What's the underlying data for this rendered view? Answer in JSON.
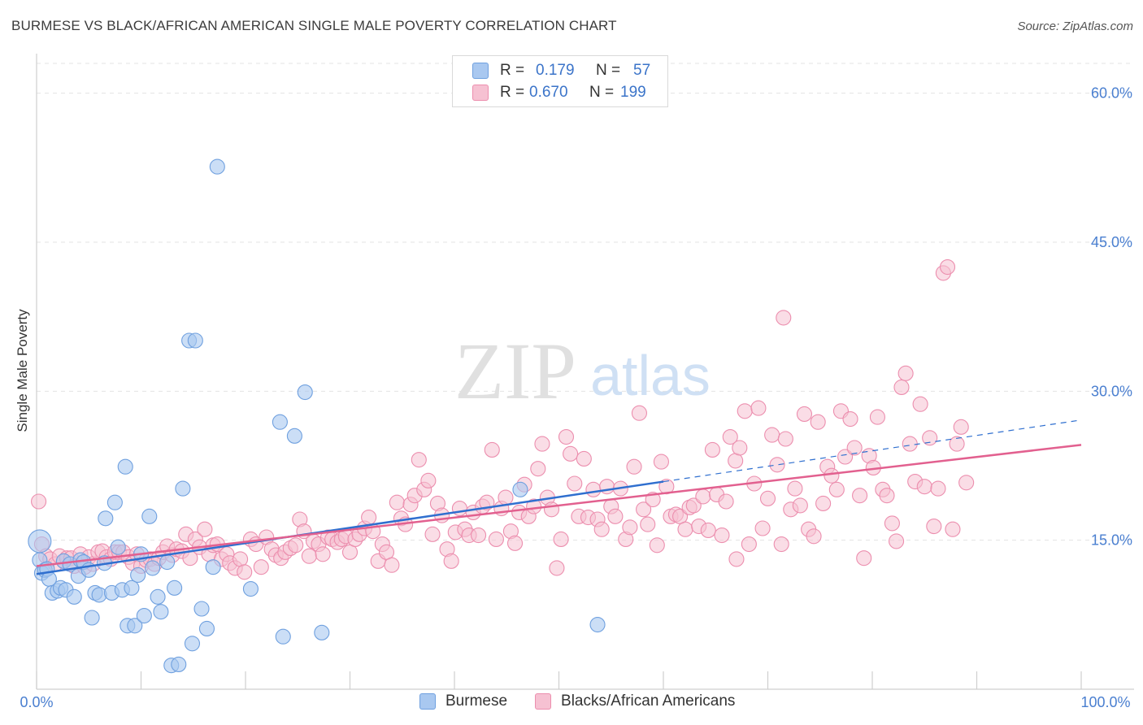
{
  "title": "BURMESE VS BLACK/AFRICAN AMERICAN SINGLE MALE POVERTY CORRELATION CHART",
  "source": "Source: ZipAtlas.com",
  "watermark": {
    "zip": "ZIP",
    "atlas": "atlas"
  },
  "legend": {
    "rows": [
      {
        "r_label": "R =",
        "r_value": "0.179",
        "n_label": "N =",
        "n_value": "57"
      },
      {
        "r_label": "R =",
        "r_value": "0.670",
        "n_label": "N =",
        "n_value": "199"
      }
    ]
  },
  "bottom_legend": {
    "series1": "Burmese",
    "series2": "Blacks/African Americans"
  },
  "colors": {
    "burmese_fill": "#a9c8f0",
    "burmese_stroke": "#6fa0df",
    "burmese_line": "#2f6fcf",
    "black_fill": "#f6c1d2",
    "black_stroke": "#ec8eae",
    "black_line": "#e2608f",
    "tick_text": "#4a7fd0",
    "grid": "#e3e3e3"
  },
  "chart_data": {
    "type": "scatter",
    "title": "BURMESE VS BLACK/AFRICAN AMERICAN SINGLE MALE POVERTY CORRELATION CHART",
    "xlabel": "",
    "ylabel": "Single Male Poverty",
    "xlim": [
      0,
      100
    ],
    "ylim": [
      0,
      63
    ],
    "x_ticks": [
      "0.0%",
      "100.0%"
    ],
    "y_ticks": [
      "15.0%",
      "30.0%",
      "45.0%",
      "60.0%"
    ],
    "y_tick_values": [
      15,
      30,
      45,
      60
    ],
    "grid": "horizontal dashed",
    "legend_position": "top-center",
    "series": [
      {
        "name": "Burmese",
        "r": 0.179,
        "n": 57,
        "trend": {
          "x_start": 0,
          "y_start": 11.6,
          "x_solid_end": 60,
          "y_solid_end": 20.9,
          "x_end": 100,
          "y_end": 27.1
        },
        "points": [
          [
            0.3,
            14.9
          ],
          [
            0.3,
            13.0
          ],
          [
            0.5,
            11.7
          ],
          [
            0.8,
            12.0
          ],
          [
            1.0,
            12.1
          ],
          [
            1.2,
            11.1
          ],
          [
            1.5,
            9.7
          ],
          [
            2.0,
            9.9
          ],
          [
            2.3,
            10.2
          ],
          [
            2.6,
            12.9
          ],
          [
            2.8,
            10.0
          ],
          [
            3.2,
            12.6
          ],
          [
            3.6,
            9.3
          ],
          [
            4.0,
            11.4
          ],
          [
            4.2,
            13.0
          ],
          [
            4.5,
            12.8
          ],
          [
            5.0,
            12.0
          ],
          [
            5.3,
            7.2
          ],
          [
            5.6,
            9.7
          ],
          [
            6.0,
            9.5
          ],
          [
            6.5,
            12.7
          ],
          [
            6.6,
            17.2
          ],
          [
            7.2,
            9.7
          ],
          [
            7.5,
            18.8
          ],
          [
            7.8,
            14.3
          ],
          [
            8.2,
            10.0
          ],
          [
            8.5,
            22.4
          ],
          [
            8.7,
            6.4
          ],
          [
            9.1,
            10.2
          ],
          [
            9.4,
            6.4
          ],
          [
            9.7,
            11.5
          ],
          [
            10.0,
            13.6
          ],
          [
            10.3,
            7.4
          ],
          [
            10.8,
            17.4
          ],
          [
            11.1,
            12.2
          ],
          [
            11.6,
            9.3
          ],
          [
            11.9,
            7.8
          ],
          [
            12.5,
            12.8
          ],
          [
            12.9,
            2.4
          ],
          [
            13.2,
            10.2
          ],
          [
            13.6,
            2.5
          ],
          [
            14.0,
            20.2
          ],
          [
            14.6,
            35.1
          ],
          [
            14.9,
            4.6
          ],
          [
            15.2,
            35.1
          ],
          [
            15.8,
            8.1
          ],
          [
            16.3,
            6.1
          ],
          [
            16.9,
            12.3
          ],
          [
            17.3,
            52.6
          ],
          [
            20.5,
            10.1
          ],
          [
            23.3,
            26.9
          ],
          [
            23.6,
            5.3
          ],
          [
            24.7,
            25.5
          ],
          [
            25.7,
            29.9
          ],
          [
            27.3,
            5.7
          ],
          [
            46.3,
            20.1
          ],
          [
            53.7,
            6.5
          ]
        ]
      },
      {
        "name": "Blacks/African Americans",
        "r": 0.67,
        "n": 199,
        "trend": {
          "x_start": 0,
          "y_start": 12.4,
          "x_end": 100,
          "y_end": 24.6
        },
        "points": [
          [
            0.2,
            18.9
          ],
          [
            0.5,
            14.6
          ],
          [
            0.9,
            13.4
          ],
          [
            1.3,
            13.1
          ],
          [
            1.8,
            12.6
          ],
          [
            2.2,
            13.4
          ],
          [
            2.6,
            12.9
          ],
          [
            2.9,
            13.2
          ],
          [
            3.3,
            13.2
          ],
          [
            3.6,
            12.4
          ],
          [
            4.2,
            13.6
          ],
          [
            4.6,
            12.3
          ],
          [
            5.0,
            13.3
          ],
          [
            5.4,
            12.6
          ],
          [
            5.9,
            13.8
          ],
          [
            6.3,
            13.9
          ],
          [
            6.7,
            13.3
          ],
          [
            7.1,
            13.1
          ],
          [
            7.5,
            13.8
          ],
          [
            7.9,
            13.8
          ],
          [
            8.3,
            13.8
          ],
          [
            8.8,
            13.3
          ],
          [
            9.2,
            12.7
          ],
          [
            9.6,
            13.6
          ],
          [
            10.0,
            12.4
          ],
          [
            10.5,
            13.0
          ],
          [
            10.9,
            13.1
          ],
          [
            11.3,
            12.6
          ],
          [
            11.7,
            13.2
          ],
          [
            12.1,
            13.8
          ],
          [
            12.5,
            14.4
          ],
          [
            13.0,
            13.5
          ],
          [
            13.4,
            14.1
          ],
          [
            13.9,
            13.9
          ],
          [
            14.3,
            15.6
          ],
          [
            14.7,
            13.2
          ],
          [
            15.2,
            15.1
          ],
          [
            15.6,
            14.3
          ],
          [
            16.1,
            16.1
          ],
          [
            16.5,
            13.6
          ],
          [
            16.9,
            14.5
          ],
          [
            17.3,
            14.6
          ],
          [
            17.7,
            13.1
          ],
          [
            18.2,
            13.6
          ],
          [
            18.5,
            12.7
          ],
          [
            19.0,
            12.2
          ],
          [
            19.5,
            13.1
          ],
          [
            19.9,
            11.8
          ],
          [
            20.5,
            15.1
          ],
          [
            21.0,
            14.6
          ],
          [
            21.5,
            12.3
          ],
          [
            22.0,
            15.3
          ],
          [
            22.5,
            14.1
          ],
          [
            22.9,
            13.5
          ],
          [
            23.4,
            13.2
          ],
          [
            23.8,
            13.8
          ],
          [
            24.3,
            14.2
          ],
          [
            24.8,
            14.5
          ],
          [
            25.2,
            17.1
          ],
          [
            25.6,
            15.9
          ],
          [
            26.1,
            13.4
          ],
          [
            26.5,
            14.9
          ],
          [
            27.0,
            14.6
          ],
          [
            27.4,
            13.6
          ],
          [
            27.9,
            15.3
          ],
          [
            28.3,
            15.1
          ],
          [
            28.8,
            14.8
          ],
          [
            29.2,
            15.1
          ],
          [
            29.6,
            15.4
          ],
          [
            30.0,
            13.8
          ],
          [
            30.5,
            15.1
          ],
          [
            30.9,
            15.6
          ],
          [
            31.4,
            16.2
          ],
          [
            31.8,
            17.3
          ],
          [
            32.2,
            15.9
          ],
          [
            32.7,
            12.9
          ],
          [
            33.1,
            14.6
          ],
          [
            33.5,
            13.8
          ],
          [
            34.0,
            12.5
          ],
          [
            34.5,
            18.8
          ],
          [
            34.9,
            17.2
          ],
          [
            35.3,
            16.6
          ],
          [
            35.8,
            18.6
          ],
          [
            36.2,
            19.5
          ],
          [
            36.6,
            23.1
          ],
          [
            37.1,
            20.1
          ],
          [
            37.5,
            21.0
          ],
          [
            37.9,
            15.6
          ],
          [
            38.4,
            18.7
          ],
          [
            38.8,
            17.5
          ],
          [
            39.3,
            14.1
          ],
          [
            39.7,
            12.9
          ],
          [
            40.1,
            15.8
          ],
          [
            40.5,
            18.2
          ],
          [
            41.0,
            16.1
          ],
          [
            41.4,
            15.5
          ],
          [
            41.8,
            17.8
          ],
          [
            42.3,
            15.5
          ],
          [
            42.7,
            18.4
          ],
          [
            43.1,
            18.8
          ],
          [
            43.6,
            24.1
          ],
          [
            44.0,
            15.1
          ],
          [
            44.5,
            18.2
          ],
          [
            44.9,
            19.3
          ],
          [
            45.4,
            15.9
          ],
          [
            45.8,
            14.7
          ],
          [
            46.2,
            17.8
          ],
          [
            46.7,
            20.6
          ],
          [
            47.1,
            17.4
          ],
          [
            47.6,
            18.4
          ],
          [
            48.0,
            22.2
          ],
          [
            48.4,
            24.7
          ],
          [
            48.9,
            19.3
          ],
          [
            49.3,
            18.1
          ],
          [
            49.8,
            12.2
          ],
          [
            50.2,
            15.1
          ],
          [
            50.7,
            25.4
          ],
          [
            51.1,
            23.7
          ],
          [
            51.5,
            20.7
          ],
          [
            51.9,
            17.4
          ],
          [
            52.4,
            23.2
          ],
          [
            52.8,
            17.3
          ],
          [
            53.3,
            20.1
          ],
          [
            53.7,
            17.1
          ],
          [
            54.1,
            16.1
          ],
          [
            54.6,
            20.4
          ],
          [
            55.0,
            18.4
          ],
          [
            55.4,
            17.4
          ],
          [
            55.9,
            20.2
          ],
          [
            56.4,
            15.1
          ],
          [
            56.8,
            16.3
          ],
          [
            57.2,
            22.4
          ],
          [
            57.7,
            27.8
          ],
          [
            58.1,
            18.1
          ],
          [
            58.5,
            16.6
          ],
          [
            59.0,
            19.1
          ],
          [
            59.4,
            14.5
          ],
          [
            59.8,
            22.9
          ],
          [
            60.3,
            20.4
          ],
          [
            60.7,
            17.4
          ],
          [
            61.2,
            17.6
          ],
          [
            61.6,
            17.4
          ],
          [
            62.1,
            16.1
          ],
          [
            62.5,
            18.3
          ],
          [
            62.9,
            18.5
          ],
          [
            63.4,
            16.4
          ],
          [
            63.8,
            19.4
          ],
          [
            64.3,
            16.0
          ],
          [
            64.7,
            24.1
          ],
          [
            65.1,
            19.6
          ],
          [
            65.6,
            15.5
          ],
          [
            66.0,
            18.9
          ],
          [
            66.4,
            25.4
          ],
          [
            66.9,
            23.0
          ],
          [
            67.3,
            24.3
          ],
          [
            67.8,
            28.0
          ],
          [
            68.2,
            14.6
          ],
          [
            68.7,
            20.7
          ],
          [
            69.1,
            28.3
          ],
          [
            69.5,
            16.2
          ],
          [
            70.0,
            19.2
          ],
          [
            70.4,
            25.6
          ],
          [
            70.9,
            22.6
          ],
          [
            71.3,
            14.6
          ],
          [
            71.7,
            25.2
          ],
          [
            72.2,
            18.1
          ],
          [
            72.6,
            20.2
          ],
          [
            73.1,
            18.5
          ],
          [
            73.5,
            27.7
          ],
          [
            73.9,
            16.1
          ],
          [
            74.4,
            15.4
          ],
          [
            74.8,
            26.9
          ],
          [
            75.3,
            18.7
          ],
          [
            75.7,
            22.4
          ],
          [
            76.1,
            21.5
          ],
          [
            76.6,
            20.1
          ],
          [
            77.0,
            28.0
          ],
          [
            77.4,
            23.4
          ],
          [
            77.9,
            27.2
          ],
          [
            78.3,
            24.3
          ],
          [
            78.8,
            19.5
          ],
          [
            79.2,
            13.2
          ],
          [
            79.7,
            23.5
          ],
          [
            80.1,
            22.3
          ],
          [
            80.5,
            27.4
          ],
          [
            81.0,
            20.1
          ],
          [
            81.4,
            19.5
          ],
          [
            81.9,
            16.7
          ],
          [
            82.3,
            14.9
          ],
          [
            82.8,
            30.4
          ],
          [
            83.2,
            31.8
          ],
          [
            83.6,
            24.7
          ],
          [
            84.1,
            20.9
          ],
          [
            84.6,
            28.7
          ],
          [
            85.0,
            20.4
          ],
          [
            85.5,
            25.3
          ],
          [
            85.9,
            16.4
          ],
          [
            86.3,
            20.2
          ],
          [
            86.8,
            41.9
          ],
          [
            87.2,
            42.5
          ],
          [
            87.7,
            16.1
          ],
          [
            88.1,
            24.7
          ],
          [
            88.5,
            26.4
          ],
          [
            89.0,
            20.8
          ],
          [
            71.5,
            37.4
          ],
          [
            67.0,
            13.1
          ]
        ]
      }
    ]
  }
}
